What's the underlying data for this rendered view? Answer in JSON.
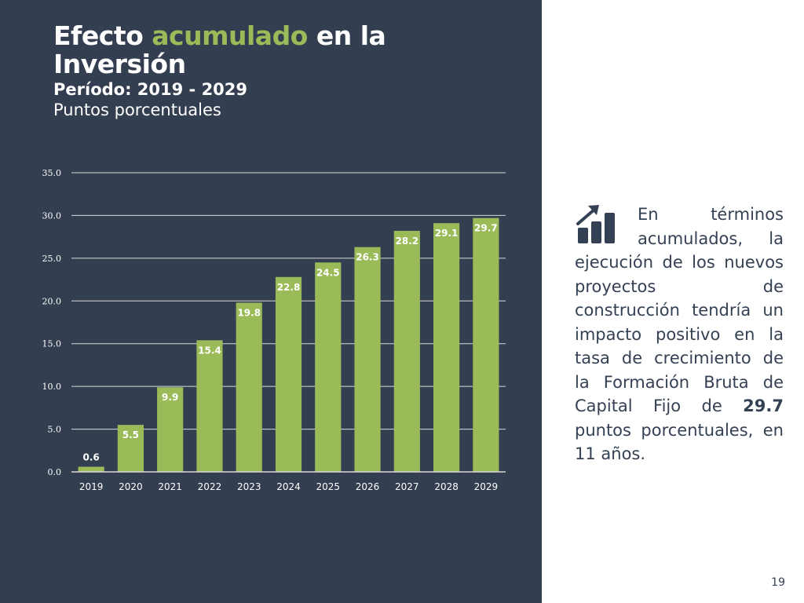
{
  "title": {
    "part1": "Efecto ",
    "accent": "acumulado",
    "part2": " en la Inversión",
    "period": "Período: 2019 - 2029",
    "units": "Puntos porcentuales"
  },
  "colors": {
    "panel_bg": "#333e50",
    "accent": "#9bbb59",
    "bar": "#9bbb59",
    "text_dark": "#344154"
  },
  "chart_data": {
    "type": "bar",
    "categories": [
      "2019",
      "2020",
      "2021",
      "2022",
      "2023",
      "2024",
      "2025",
      "2026",
      "2027",
      "2028",
      "2029"
    ],
    "values": [
      0.6,
      5.5,
      9.9,
      15.4,
      19.8,
      22.8,
      24.5,
      26.3,
      28.2,
      29.1,
      29.7
    ],
    "data_labels": [
      "0.6",
      "5.5",
      "9.9",
      "15.4",
      "19.8",
      "22.8",
      "24.5",
      "26.3",
      "28.2",
      "29.1",
      "29.7"
    ],
    "ylim": [
      0,
      35
    ],
    "y_ticks": [
      0,
      5,
      10,
      15,
      20,
      25,
      30,
      35
    ],
    "y_tick_labels": [
      "0.0",
      "5.0",
      "10.0",
      "15.0",
      "20.0",
      "25.0",
      "30.0",
      "35.0"
    ],
    "grid": true,
    "xlabel": "",
    "ylabel": ""
  },
  "description": {
    "icon": "bar-chart-growth-icon",
    "before_bold": "En términos acumulados, la ejecución de los nuevos proyectos de construcción tendría un impacto positivo en la tasa de crecimiento de la Formación Bruta de Capital Fijo de ",
    "bold": "29.7",
    "after_bold": " puntos porcentuales, en 11 años."
  },
  "page_number": "19"
}
